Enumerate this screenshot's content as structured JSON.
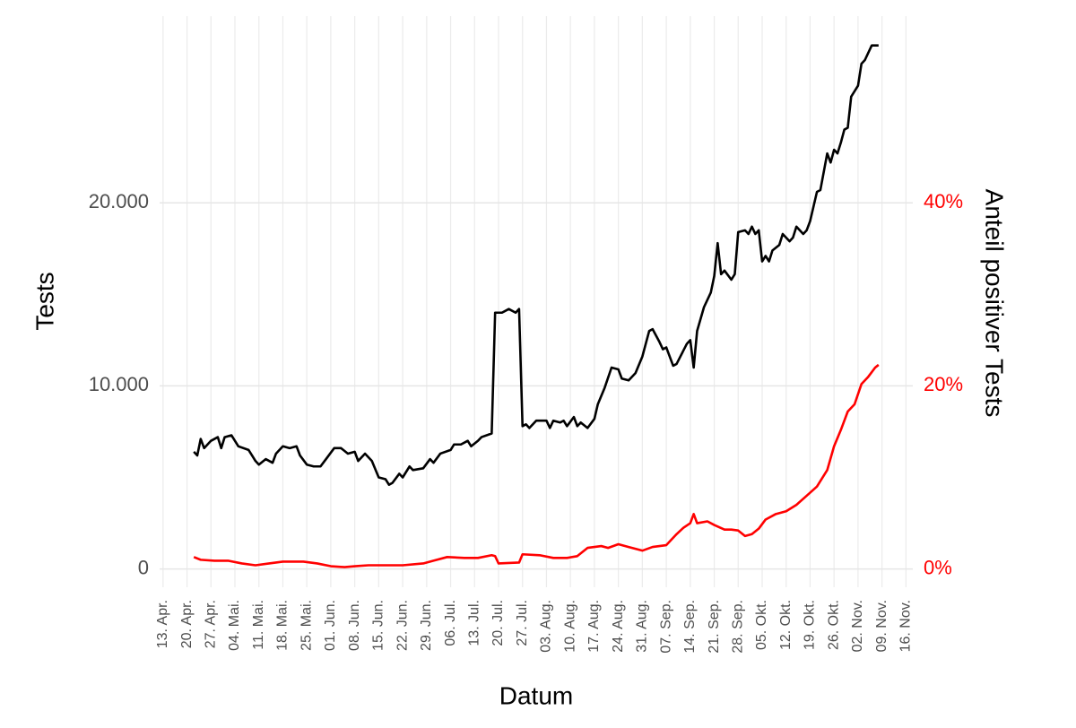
{
  "chart_data": {
    "type": "line",
    "x_label": "Datum",
    "y_label": "Tests",
    "y2_label": "Anteil positiver Tests",
    "y2_label_color": "#ff0000",
    "grid": true,
    "xlim": [
      "12. Apr.",
      "18. Nov."
    ],
    "xticks": [
      "13. Apr.",
      "20. Apr.",
      "27. Apr.",
      "04. Mai.",
      "11. Mai.",
      "18. Mai.",
      "25. Mai.",
      "01. Jun.",
      "08. Jun.",
      "15. Jun.",
      "22. Jun.",
      "29. Jun.",
      "06. Jul.",
      "13. Jul.",
      "20. Jul.",
      "27. Jul.",
      "03. Aug.",
      "10. Aug.",
      "17. Aug.",
      "24. Aug.",
      "31. Aug.",
      "07. Sep.",
      "14. Sep.",
      "21. Sep.",
      "28. Sep.",
      "05. Okt.",
      "12. Okt.",
      "19. Okt.",
      "26. Okt.",
      "02. Nov.",
      "09. Nov.",
      "16. Nov."
    ],
    "ylim": [
      -1000,
      30200
    ],
    "yticks": [
      {
        "value": 0,
        "label": "0"
      },
      {
        "value": 10000,
        "label": "10.000"
      },
      {
        "value": 20000,
        "label": "20.000"
      }
    ],
    "y2lim": [
      -2,
      60.4
    ],
    "y2ticks": [
      {
        "value": 0,
        "label": "0%"
      },
      {
        "value": 20,
        "label": "20%"
      },
      {
        "value": 40,
        "label": "40%"
      }
    ],
    "series": [
      {
        "name": "Tests",
        "color": "#000000",
        "x": [
          "22. Apr.",
          "23. Apr.",
          "24. Apr.",
          "25. Apr.",
          "27. Apr.",
          "29. Apr.",
          "30. Apr.",
          "01. Mai.",
          "03. Mai.",
          "05. Mai.",
          "08. Mai.",
          "10. Mai.",
          "11. Mai.",
          "13. Mai.",
          "15. Mai.",
          "16. Mai.",
          "18. Mai.",
          "20. Mai.",
          "22. Mai.",
          "23. Mai.",
          "25. Mai.",
          "27. Mai.",
          "29. Mai.",
          "31. Mai.",
          "02. Jun.",
          "04. Jun.",
          "06. Jun.",
          "08. Jun.",
          "09. Jun.",
          "11. Jun.",
          "13. Jun.",
          "15. Jun.",
          "17. Jun.",
          "18. Jun.",
          "19. Jun.",
          "21. Jun.",
          "22. Jun.",
          "24. Jun.",
          "25. Jun.",
          "28. Jun.",
          "30. Jun.",
          "01. Jul.",
          "03. Jul.",
          "06. Jul.",
          "07. Jul.",
          "09. Jul.",
          "11. Jul.",
          "12. Jul.",
          "14. Jul.",
          "15. Jul.",
          "18. Jul.",
          "19. Jul.",
          "21. Jul.",
          "23. Jul.",
          "25. Jul.",
          "26. Jul.",
          "27. Jul.",
          "28. Jul.",
          "29. Jul.",
          "31. Jul.",
          "03. Aug.",
          "04. Aug.",
          "05. Aug.",
          "07. Aug.",
          "08. Aug.",
          "09. Aug.",
          "11. Aug.",
          "12. Aug.",
          "13. Aug.",
          "15. Aug.",
          "17. Aug.",
          "18. Aug.",
          "20. Aug.",
          "22. Aug.",
          "24. Aug.",
          "25. Aug.",
          "27. Aug.",
          "29. Aug.",
          "31. Aug.",
          "02. Sep.",
          "03. Sep.",
          "05. Sep.",
          "06. Sep.",
          "07. Sep.",
          "09. Sep.",
          "10. Sep.",
          "13. Sep.",
          "14. Sep.",
          "15. Sep.",
          "16. Sep.",
          "18. Sep.",
          "20. Sep.",
          "21. Sep.",
          "22. Sep.",
          "23. Sep.",
          "24. Sep.",
          "26. Sep.",
          "27. Sep.",
          "28. Sep.",
          "30. Sep.",
          "01. Okt.",
          "02. Okt.",
          "03. Okt.",
          "04. Okt.",
          "05. Okt.",
          "06. Okt.",
          "07. Okt.",
          "08. Okt.",
          "10. Okt.",
          "11. Okt.",
          "13. Okt.",
          "14. Okt.",
          "15. Okt.",
          "17. Okt.",
          "18. Okt.",
          "19. Okt.",
          "21. Okt.",
          "22. Okt.",
          "24. Okt.",
          "25. Okt.",
          "26. Okt.",
          "27. Okt.",
          "28. Okt.",
          "29. Okt.",
          "30. Okt.",
          "31. Okt.",
          "02. Nov.",
          "03. Nov.",
          "04. Nov.",
          "06. Nov.",
          "08. Nov."
        ],
        "values": [
          6400,
          6200,
          7100,
          6600,
          7000,
          7200,
          6600,
          7200,
          7300,
          6700,
          6500,
          5900,
          5700,
          6000,
          5800,
          6300,
          6700,
          6600,
          6700,
          6200,
          5700,
          5600,
          5600,
          6100,
          6600,
          6600,
          6300,
          6400,
          5900,
          6300,
          5900,
          5000,
          4900,
          4600,
          4700,
          5200,
          5000,
          5600,
          5400,
          5500,
          6000,
          5800,
          6300,
          6500,
          6800,
          6800,
          7000,
          6700,
          7000,
          7200,
          7400,
          14000,
          14000,
          14200,
          14000,
          14200,
          7800,
          7900,
          7700,
          8100,
          8100,
          7700,
          8100,
          8000,
          8100,
          7800,
          8300,
          7800,
          8000,
          7700,
          8200,
          9000,
          9900,
          11000,
          10900,
          10400,
          10300,
          10700,
          11600,
          13000,
          13100,
          12400,
          12000,
          12100,
          11100,
          11200,
          12300,
          12500,
          11000,
          13000,
          14300,
          15100,
          16000,
          17800,
          16100,
          16300,
          15800,
          16100,
          18400,
          18500,
          18300,
          18700,
          18300,
          18500,
          16800,
          17100,
          16800,
          17400,
          17700,
          18300,
          17900,
          18100,
          18700,
          18300,
          18500,
          19000,
          20600,
          20700,
          22700,
          22200,
          22900,
          22700,
          23300,
          24000,
          24100,
          25800,
          26400,
          27600,
          27800,
          28600,
          28600
        ]
      },
      {
        "name": "Anteil positiver Tests",
        "color": "#ff0000",
        "axis": "y2",
        "x": [
          "22. Apr.",
          "24. Apr.",
          "28. Apr.",
          "02. Mai.",
          "06. Mai.",
          "10. Mai.",
          "14. Mai.",
          "18. Mai.",
          "24. Mai.",
          "28. Mai.",
          "01. Jun.",
          "05. Jun.",
          "08. Jun.",
          "12. Jun.",
          "16. Jun.",
          "22. Jun.",
          "28. Jun.",
          "01. Jul.",
          "05. Jul.",
          "10. Jul.",
          "14. Jul.",
          "18. Jul.",
          "19. Jul.",
          "20. Jul.",
          "26. Jul.",
          "27. Jul.",
          "01. Aug.",
          "05. Aug.",
          "09. Aug.",
          "12. Aug.",
          "15. Aug.",
          "19. Aug.",
          "21. Aug.",
          "24. Aug.",
          "27. Aug.",
          "31. Aug.",
          "03. Sep.",
          "07. Sep.",
          "10. Sep.",
          "12. Sep.",
          "14. Sep.",
          "15. Sep.",
          "16. Sep.",
          "19. Sep.",
          "21. Sep.",
          "24. Sep.",
          "26. Sep.",
          "28. Sep.",
          "30. Sep.",
          "02. Okt.",
          "04. Okt.",
          "06. Okt.",
          "09. Okt.",
          "12. Okt.",
          "15. Okt.",
          "18. Okt.",
          "21. Okt.",
          "24. Okt.",
          "26. Okt.",
          "28. Okt.",
          "30. Okt.",
          "01. Nov.",
          "03. Nov.",
          "05. Nov.",
          "07. Nov.",
          "08. Nov."
        ],
        "values": [
          1.3,
          1.0,
          0.9,
          0.9,
          0.6,
          0.4,
          0.6,
          0.8,
          0.8,
          0.6,
          0.3,
          0.2,
          0.3,
          0.4,
          0.4,
          0.4,
          0.6,
          0.9,
          1.3,
          1.2,
          1.2,
          1.5,
          1.4,
          0.6,
          0.7,
          1.6,
          1.5,
          1.2,
          1.2,
          1.4,
          2.3,
          2.5,
          2.3,
          2.7,
          2.4,
          2.0,
          2.4,
          2.6,
          3.8,
          4.5,
          5.0,
          6.0,
          5.0,
          5.2,
          4.8,
          4.3,
          4.3,
          4.2,
          3.6,
          3.8,
          4.4,
          5.4,
          6.0,
          6.3,
          7.0,
          8.0,
          9.0,
          10.8,
          13.4,
          15.2,
          17.2,
          18.0,
          20.2,
          21.0,
          22.0,
          22.3
        ]
      }
    ]
  }
}
